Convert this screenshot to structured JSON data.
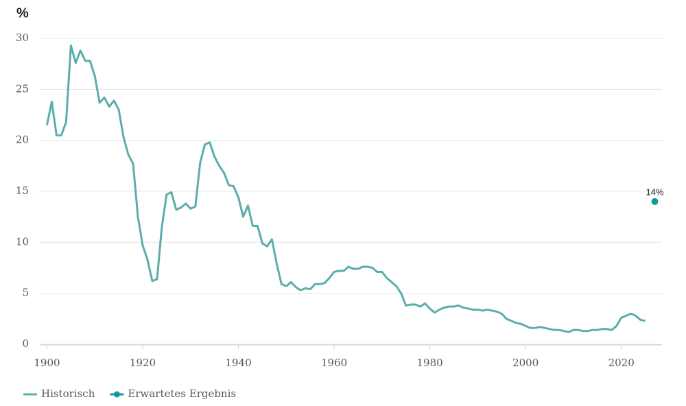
{
  "chart_data": {
    "type": "line",
    "y_label": "%",
    "xlim": [
      1898.5,
      2028.5
    ],
    "xticks": [
      1900,
      1920,
      1940,
      1960,
      1980,
      2000,
      2020
    ],
    "ylim": [
      0,
      30
    ],
    "yticks": [
      0,
      5,
      10,
      15,
      20,
      25,
      30
    ],
    "grid": true,
    "legend": "bottom-left",
    "series": [
      {
        "name": "Historisch",
        "color": "#5aaeaa",
        "mode": "lines",
        "x": [
          1900,
          1901,
          1902,
          1903,
          1904,
          1905,
          1906,
          1907,
          1908,
          1909,
          1910,
          1911,
          1912,
          1913,
          1914,
          1915,
          1916,
          1917,
          1918,
          1919,
          1920,
          1921,
          1922,
          1923,
          1924,
          1925,
          1926,
          1927,
          1928,
          1929,
          1930,
          1931,
          1932,
          1933,
          1934,
          1935,
          1936,
          1937,
          1938,
          1939,
          1940,
          1941,
          1942,
          1943,
          1944,
          1945,
          1946,
          1947,
          1948,
          1949,
          1950,
          1951,
          1952,
          1953,
          1954,
          1955,
          1956,
          1957,
          1958,
          1959,
          1960,
          1961,
          1962,
          1963,
          1964,
          1965,
          1966,
          1967,
          1968,
          1969,
          1970,
          1971,
          1972,
          1973,
          1974,
          1975,
          1976,
          1977,
          1978,
          1979,
          1980,
          1981,
          1982,
          1983,
          1984,
          1985,
          1986,
          1987,
          1988,
          1989,
          1990,
          1991,
          1992,
          1993,
          1994,
          1995,
          1996,
          1997,
          1998,
          1999,
          2000,
          2001,
          2002,
          2003,
          2004,
          2005,
          2006,
          2007,
          2008,
          2009,
          2010,
          2011,
          2012,
          2013,
          2014,
          2015,
          2016,
          2017,
          2018,
          2019,
          2020,
          2021,
          2022,
          2023,
          2024,
          2025
        ],
        "values": [
          21.5,
          23.8,
          20.5,
          20.5,
          21.8,
          29.3,
          27.6,
          28.8,
          27.8,
          27.8,
          26.3,
          23.7,
          24.2,
          23.3,
          23.9,
          23.0,
          20.3,
          18.6,
          17.7,
          12.5,
          9.7,
          8.3,
          6.2,
          6.4,
          11.5,
          14.7,
          14.9,
          13.2,
          13.4,
          13.8,
          13.3,
          13.5,
          17.8,
          19.6,
          19.8,
          18.4,
          17.5,
          16.8,
          15.6,
          15.5,
          14.4,
          12.5,
          13.6,
          11.6,
          11.6,
          9.9,
          9.6,
          10.3,
          7.9,
          5.9,
          5.7,
          6.1,
          5.6,
          5.3,
          5.5,
          5.4,
          5.9,
          5.9,
          6.0,
          6.5,
          7.1,
          7.2,
          7.2,
          7.6,
          7.4,
          7.4,
          7.6,
          7.6,
          7.5,
          7.1,
          7.1,
          6.5,
          6.1,
          5.7,
          5.0,
          3.8,
          3.9,
          3.9,
          3.7,
          4.0,
          3.5,
          3.1,
          3.4,
          3.6,
          3.7,
          3.7,
          3.8,
          3.6,
          3.5,
          3.4,
          3.4,
          3.3,
          3.4,
          3.3,
          3.2,
          3.0,
          2.5,
          2.3,
          2.1,
          2.0,
          1.8,
          1.6,
          1.6,
          1.7,
          1.6,
          1.5,
          1.4,
          1.4,
          1.3,
          1.2,
          1.4,
          1.4,
          1.3,
          1.3,
          1.4,
          1.4,
          1.5,
          1.5,
          1.4,
          1.8,
          2.6,
          2.8,
          3.0,
          2.8,
          2.4,
          2.3
        ]
      },
      {
        "name": "Erwartetes Ergebnis",
        "color": "#10999e",
        "mode": "markers",
        "x": [
          2027
        ],
        "values": [
          14
        ],
        "value_labels": [
          "14%"
        ]
      }
    ]
  }
}
